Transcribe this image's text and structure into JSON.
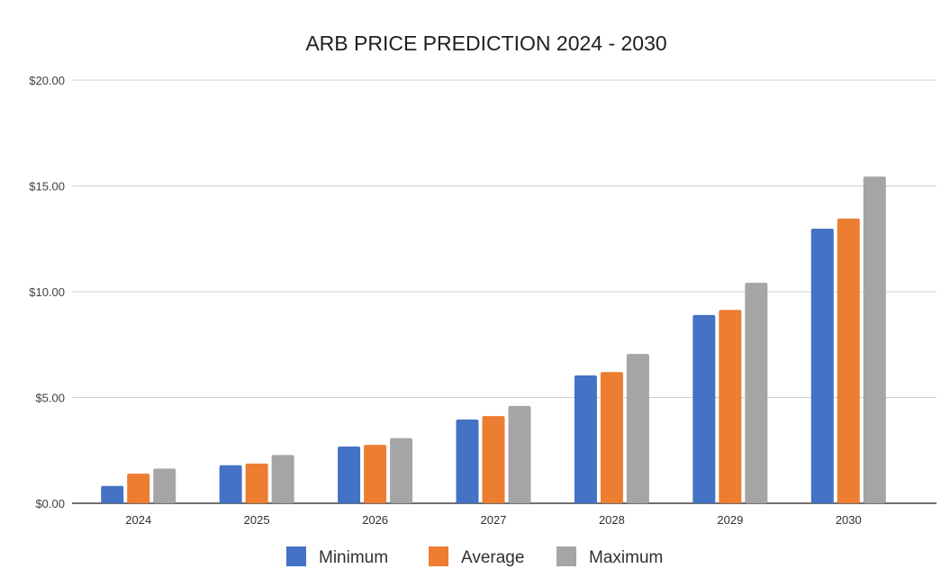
{
  "chart_data": {
    "type": "bar",
    "title": "ARB PRICE PREDICTION 2024 - 2030",
    "xlabel": "",
    "ylabel": "",
    "categories": [
      "2024",
      "2025",
      "2026",
      "2027",
      "2028",
      "2029",
      "2030"
    ],
    "series": [
      {
        "name": "Minimum",
        "color": "#4472c4",
        "values": [
          0.82,
          1.8,
          2.68,
          3.96,
          6.04,
          8.9,
          12.98
        ]
      },
      {
        "name": "Average",
        "color": "#ed7d31",
        "values": [
          1.4,
          1.88,
          2.76,
          4.12,
          6.2,
          9.14,
          13.46
        ]
      },
      {
        "name": "Maximum",
        "color": "#a5a5a5",
        "values": [
          1.64,
          2.28,
          3.08,
          4.6,
          7.06,
          10.42,
          15.44
        ]
      }
    ],
    "ylim": [
      0,
      20
    ],
    "yticks": [
      0,
      5,
      10,
      15,
      20
    ],
    "ytick_labels": [
      "$0.00",
      "$5.00",
      "$10.00",
      "$15.00",
      "$20.00"
    ],
    "grid": true,
    "legend_position": "bottom-center"
  }
}
